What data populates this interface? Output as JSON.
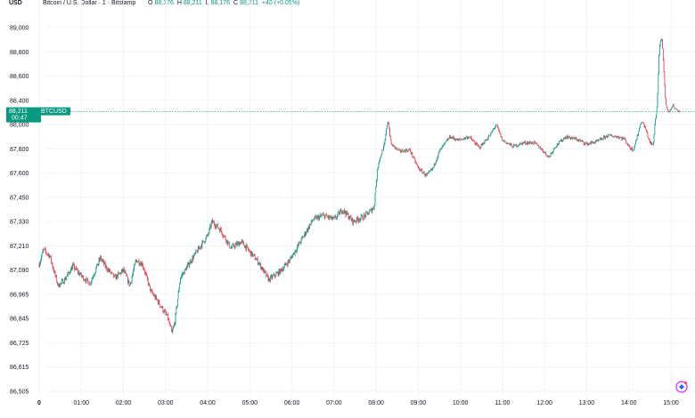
{
  "header": {
    "currency": "USD",
    "title": "Bitcoin / U.S. Dollar · 1 · Bitstamp",
    "o_label": "O",
    "o_value": "88,176",
    "h_label": "H",
    "h_value": "88,211",
    "l_label": "L",
    "l_value": "88,176",
    "c_label": "C",
    "c_value": "88,211",
    "change": "+40 (+0.05%)"
  },
  "price_tag": {
    "price": "88,211",
    "countdown": "00:47",
    "symbol": "BTCUSD",
    "value": 88211
  },
  "colors": {
    "up": "#089981",
    "down": "#f23645",
    "grid": "#f0f3fa",
    "last_price_line": "#089981"
  },
  "chart_data": {
    "type": "candlestick",
    "title": "",
    "xlabel": "",
    "ylabel": "",
    "ylim": [
      86505,
      89000
    ],
    "y_ticks": [
      89000,
      88800,
      88600,
      88400,
      88000,
      87800,
      87600,
      87450,
      87330,
      87210,
      87090,
      86965,
      86845,
      86725,
      86615,
      86505
    ],
    "y_tick_labels": [
      "89,000",
      "88,800",
      "88,600",
      "88,400",
      "88,000",
      "87,800",
      "87,600",
      "87,450",
      "87,330",
      "87,210",
      "87,090",
      "86,965",
      "86,845",
      "86,725",
      "86,615",
      "86,505"
    ],
    "x_tick_labels": [
      "0",
      "01:00",
      "02:00",
      "03:00",
      "04:00",
      "05:00",
      "06:00",
      "07:00",
      "08:00",
      "09:00",
      "10:00",
      "11:00",
      "12:00",
      "13:00",
      "14:00",
      "15:00"
    ],
    "x_tick_hours": [
      0,
      1,
      2,
      3,
      4,
      5,
      6,
      7,
      8,
      9,
      10,
      11,
      12,
      13,
      14,
      15
    ],
    "grid": true,
    "close_path": [
      [
        0.0,
        87120
      ],
      [
        0.1,
        87190
      ],
      [
        0.25,
        87160
      ],
      [
        0.45,
        87010
      ],
      [
        0.6,
        87040
      ],
      [
        0.8,
        87110
      ],
      [
        1.0,
        87060
      ],
      [
        1.2,
        87020
      ],
      [
        1.45,
        87150
      ],
      [
        1.6,
        87100
      ],
      [
        1.8,
        87050
      ],
      [
        2.0,
        87090
      ],
      [
        2.15,
        87010
      ],
      [
        2.3,
        87140
      ],
      [
        2.45,
        87120
      ],
      [
        2.65,
        86980
      ],
      [
        2.85,
        86920
      ],
      [
        3.05,
        86850
      ],
      [
        3.15,
        86770
      ],
      [
        3.22,
        86830
      ],
      [
        3.35,
        87050
      ],
      [
        3.55,
        87120
      ],
      [
        3.8,
        87200
      ],
      [
        4.0,
        87260
      ],
      [
        4.1,
        87330
      ],
      [
        4.3,
        87290
      ],
      [
        4.55,
        87200
      ],
      [
        4.8,
        87230
      ],
      [
        5.0,
        87180
      ],
      [
        5.2,
        87130
      ],
      [
        5.45,
        87040
      ],
      [
        5.7,
        87080
      ],
      [
        5.95,
        87140
      ],
      [
        6.2,
        87230
      ],
      [
        6.5,
        87340
      ],
      [
        6.75,
        87360
      ],
      [
        7.0,
        87340
      ],
      [
        7.2,
        87390
      ],
      [
        7.45,
        87330
      ],
      [
        7.75,
        87360
      ],
      [
        7.95,
        87400
      ],
      [
        8.05,
        87680
      ],
      [
        8.2,
        87840
      ],
      [
        8.28,
        88060
      ],
      [
        8.35,
        87840
      ],
      [
        8.55,
        87780
      ],
      [
        8.8,
        87790
      ],
      [
        9.0,
        87640
      ],
      [
        9.2,
        87580
      ],
      [
        9.35,
        87640
      ],
      [
        9.5,
        87780
      ],
      [
        9.75,
        87900
      ],
      [
        9.95,
        87870
      ],
      [
        10.2,
        87900
      ],
      [
        10.45,
        87810
      ],
      [
        10.7,
        87910
      ],
      [
        10.85,
        88000
      ],
      [
        11.0,
        87870
      ],
      [
        11.25,
        87820
      ],
      [
        11.5,
        87850
      ],
      [
        11.75,
        87850
      ],
      [
        11.95,
        87790
      ],
      [
        12.1,
        87730
      ],
      [
        12.25,
        87820
      ],
      [
        12.5,
        87900
      ],
      [
        12.75,
        87880
      ],
      [
        13.0,
        87840
      ],
      [
        13.25,
        87860
      ],
      [
        13.5,
        87910
      ],
      [
        13.75,
        87900
      ],
      [
        13.9,
        87880
      ],
      [
        14.0,
        87820
      ],
      [
        14.1,
        87790
      ],
      [
        14.2,
        87900
      ],
      [
        14.3,
        88050
      ],
      [
        14.4,
        87960
      ],
      [
        14.5,
        87850
      ],
      [
        14.58,
        87830
      ],
      [
        14.66,
        88230
      ],
      [
        14.72,
        88820
      ],
      [
        14.78,
        88920
      ],
      [
        14.84,
        88600
      ],
      [
        14.88,
        88320
      ],
      [
        14.95,
        88200
      ],
      [
        15.05,
        88320
      ],
      [
        15.1,
        88260
      ],
      [
        15.2,
        88211
      ]
    ]
  }
}
